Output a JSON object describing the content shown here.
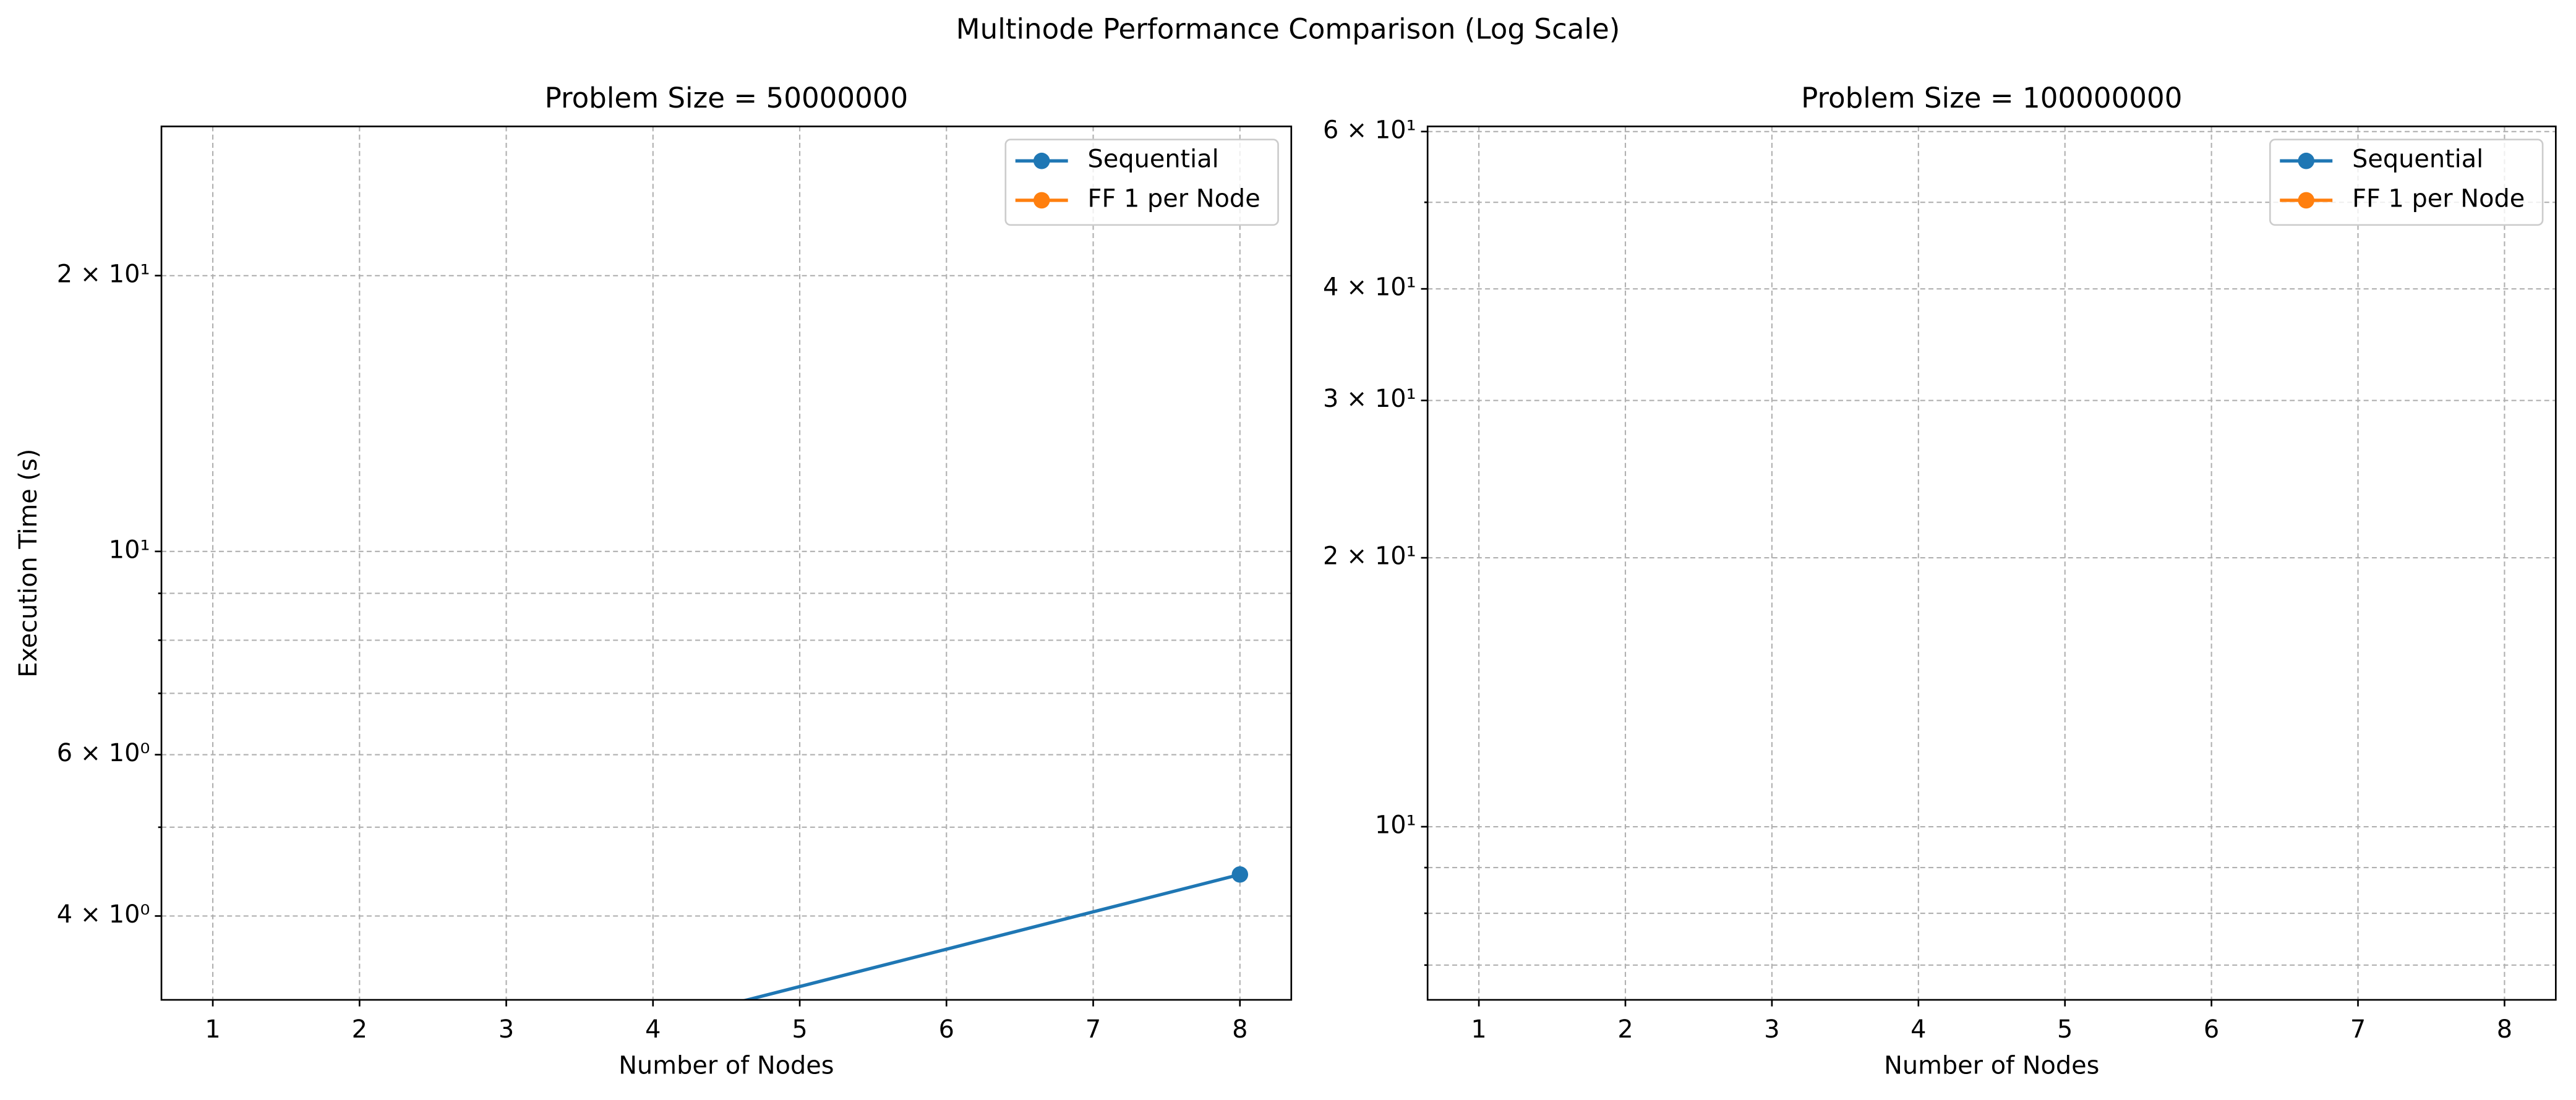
{
  "title": "Multinode Performance Comparison (Log Scale)",
  "chart_data": [
    {
      "type": "line",
      "title": "Problem Size = 50000000",
      "xlabel": "Number of Nodes",
      "ylabel": "Execution Time (s)",
      "x": [
        4,
        8
      ],
      "series": [
        {
          "name": "Sequential",
          "color": "#1f77b4",
          "values": [
            3.05,
            4.44
          ]
        },
        {
          "name": "FF 1 per Node",
          "color": "#ff7f0e",
          "values": [
            null,
            null
          ]
        }
      ],
      "xlim": [
        0.65,
        8.35
      ],
      "ylim": [
        3.24,
        29.1
      ],
      "log_y": true,
      "grid": true,
      "legend": "upper right",
      "xticks": [
        1,
        2,
        3,
        4,
        5,
        6,
        7,
        8
      ],
      "yticks": [
        {
          "value": 4,
          "label": "4 × 10⁰"
        },
        {
          "value": 6,
          "label": "6 × 10⁰"
        },
        {
          "value": 10,
          "label": "10¹"
        },
        {
          "value": 20,
          "label": "2 × 10¹"
        }
      ],
      "yminorticks": [
        5,
        7,
        8,
        9
      ]
    },
    {
      "type": "line",
      "title": "Problem Size = 100000000",
      "xlabel": "Number of Nodes",
      "x": [
        4,
        8
      ],
      "series": [
        {
          "name": "Sequential",
          "color": "#1f77b4",
          "values": [
            null,
            null
          ]
        },
        {
          "name": "FF 1 per Node",
          "color": "#ff7f0e",
          "values": [
            null,
            null
          ]
        }
      ],
      "xlim": [
        0.65,
        8.35
      ],
      "ylim": [
        6.4,
        60.8
      ],
      "log_y": true,
      "grid": true,
      "legend": "upper right",
      "xticks": [
        1,
        2,
        3,
        4,
        5,
        6,
        7,
        8
      ],
      "yticks": [
        {
          "value": 10,
          "label": "10¹"
        },
        {
          "value": 20,
          "label": "2 × 10¹"
        },
        {
          "value": 30,
          "label": "3 × 10¹"
        },
        {
          "value": 40,
          "label": "4 × 10¹"
        },
        {
          "value": 60,
          "label": "6 × 10¹"
        }
      ],
      "yminorticks": [
        7,
        8,
        9,
        50
      ]
    }
  ]
}
